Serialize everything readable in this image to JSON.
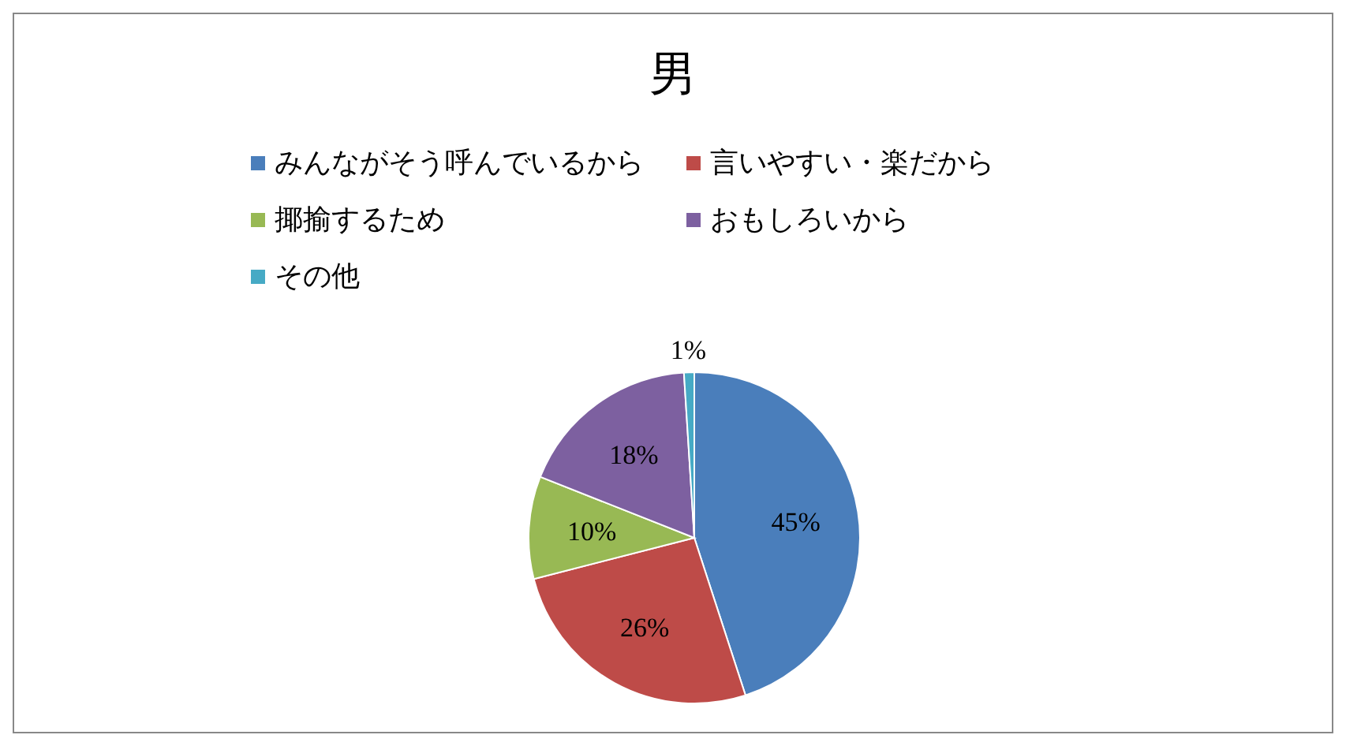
{
  "chart_data": {
    "type": "pie",
    "title": "男",
    "legend": "top",
    "value_labels": [
      "45%",
      "26%",
      "10%",
      "18%",
      "1%"
    ],
    "categories": [
      "みんながそう呼んでいるから",
      "言いやすい・楽だから",
      "揶揄するため",
      "おもしろいから",
      "その他"
    ],
    "values": [
      45,
      26,
      10,
      18,
      1
    ],
    "colors": [
      "#4a7ebb",
      "#be4b48",
      "#98b954",
      "#7d60a0",
      "#46aac5"
    ]
  }
}
